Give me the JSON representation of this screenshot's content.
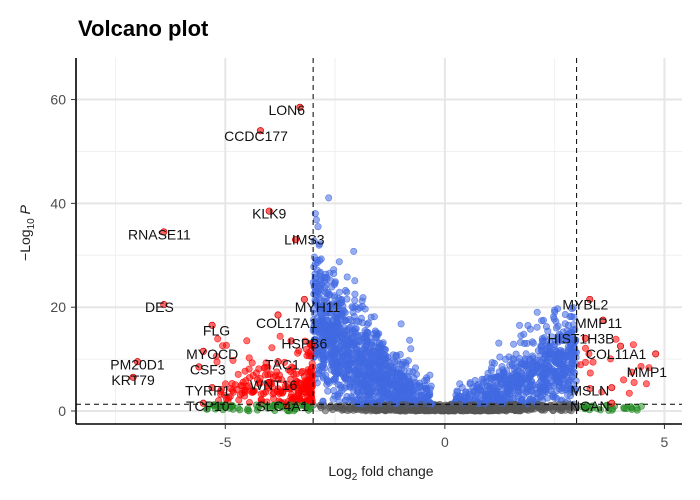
{
  "chart_data": {
    "type": "scatter",
    "title": "Volcano plot",
    "xlabel": {
      "text": "Log",
      "sub": "2",
      "rest": " fold change"
    },
    "ylabel": {
      "text": "−Log",
      "sub": "10",
      "rest": " ",
      "ital": "P"
    },
    "xlim": [
      -8.4,
      5.4
    ],
    "ylim": [
      -2.5,
      68
    ],
    "x_ticks": [
      -5,
      0,
      5
    ],
    "y_ticks": [
      0,
      20,
      40,
      60
    ],
    "x_tick_labels": [
      "-5",
      "0",
      "5"
    ],
    "y_tick_labels": [
      "0",
      "20",
      "40",
      "60"
    ],
    "thresholds": {
      "fold_change": [
        -3,
        3
      ],
      "p_value": 1.3
    },
    "grid": true,
    "legend": "none",
    "colors": {
      "not_significant": "#555555",
      "log2fc_only": "#228B22",
      "p_value_only": "#4169E1",
      "p_value_and_log2fc": "#FF0000"
    },
    "labeled_points": [
      {
        "label": "LON6",
        "x": -3.3,
        "y": 58.5,
        "lx": -3.6,
        "ly": 58
      },
      {
        "label": "CCDC177",
        "x": -4.2,
        "y": 54,
        "lx": -4.3,
        "ly": 53
      },
      {
        "label": "KLK9",
        "x": -4.0,
        "y": 38.5,
        "lx": -4.0,
        "ly": 38
      },
      {
        "label": "RNASE11",
        "x": -6.4,
        "y": 34.5,
        "lx": -6.5,
        "ly": 34
      },
      {
        "label": "LIMS3",
        "x": -3.4,
        "y": 33,
        "lx": -3.2,
        "ly": 33
      },
      {
        "label": "DES",
        "x": -6.4,
        "y": 20.5,
        "lx": -6.5,
        "ly": 20
      },
      {
        "label": "MYH11",
        "x": -3.2,
        "y": 21.5,
        "lx": -2.9,
        "ly": 20
      },
      {
        "label": "COL17A1",
        "x": -3.8,
        "y": 18.5,
        "lx": -3.6,
        "ly": 17
      },
      {
        "label": "FLG",
        "x": -5.3,
        "y": 16.5,
        "lx": -5.2,
        "ly": 15.5
      },
      {
        "label": "HSPB6",
        "x": -3.5,
        "y": 13.5,
        "lx": -3.2,
        "ly": 13
      },
      {
        "label": "MYOCD",
        "x": -5.5,
        "y": 11.5,
        "lx": -5.3,
        "ly": 11
      },
      {
        "label": "PM20D1",
        "x": -7.0,
        "y": 9.5,
        "lx": -7.0,
        "ly": 9
      },
      {
        "label": "CSF3",
        "x": -5.6,
        "y": 8.5,
        "lx": -5.4,
        "ly": 8
      },
      {
        "label": "TAC1",
        "x": -3.8,
        "y": 9.5,
        "lx": -3.7,
        "ly": 9
      },
      {
        "label": "KRT79",
        "x": -7.1,
        "y": 6.5,
        "lx": -7.1,
        "ly": 6
      },
      {
        "label": "WNT16",
        "x": -4.0,
        "y": 5.5,
        "lx": -3.9,
        "ly": 5
      },
      {
        "label": "TYRP1",
        "x": -5.3,
        "y": 4.5,
        "lx": -5.4,
        "ly": 4
      },
      {
        "label": "TCP10",
        "x": -5.5,
        "y": 1.5,
        "lx": -5.4,
        "ly": 1
      },
      {
        "label": "SLC4A1",
        "x": -3.6,
        "y": 1.0,
        "lx": -3.7,
        "ly": 1
      },
      {
        "label": "MYBL2",
        "x": 3.3,
        "y": 21.5,
        "lx": 3.2,
        "ly": 20.5
      },
      {
        "label": "MMP11",
        "x": 3.6,
        "y": 17.5,
        "lx": 3.5,
        "ly": 17
      },
      {
        "label": "HIST1H3B",
        "x": 3.2,
        "y": 14,
        "lx": 3.1,
        "ly": 14
      },
      {
        "label": "COL11A1",
        "x": 4.0,
        "y": 12.5,
        "lx": 3.9,
        "ly": 11
      },
      {
        "label": "MMP1",
        "x": 4.8,
        "y": 11,
        "lx": 4.6,
        "ly": 7.5
      },
      {
        "label": "MSLN",
        "x": 3.8,
        "y": 4.5,
        "lx": 3.3,
        "ly": 4
      },
      {
        "label": "NCAN",
        "x": 3.8,
        "y": 1.5,
        "lx": 3.3,
        "ly": 1
      }
    ]
  }
}
